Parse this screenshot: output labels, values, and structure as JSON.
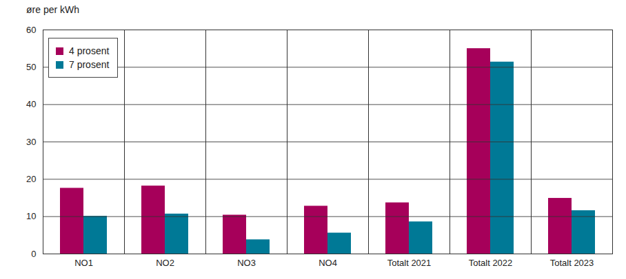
{
  "chart_data": {
    "type": "bar",
    "y_label": "øre per kWh",
    "categories": [
      "NO1",
      "NO2",
      "NO3",
      "NO4",
      "Totalt 2021",
      "Totalt 2022",
      "Totalt 2023"
    ],
    "series": [
      {
        "name": "4 prosent",
        "color": "#a6005a",
        "values": [
          17.6,
          18.2,
          10.4,
          12.8,
          13.7,
          55.0,
          14.9
        ]
      },
      {
        "name": "7 prosent",
        "color": "#007996",
        "values": [
          10.1,
          10.7,
          3.8,
          5.6,
          8.6,
          51.4,
          11.6
        ]
      }
    ],
    "ylim": [
      0,
      60
    ],
    "yticks": [
      0,
      10,
      20,
      30,
      40,
      50,
      60
    ],
    "grid": true,
    "legend": "top-left"
  }
}
